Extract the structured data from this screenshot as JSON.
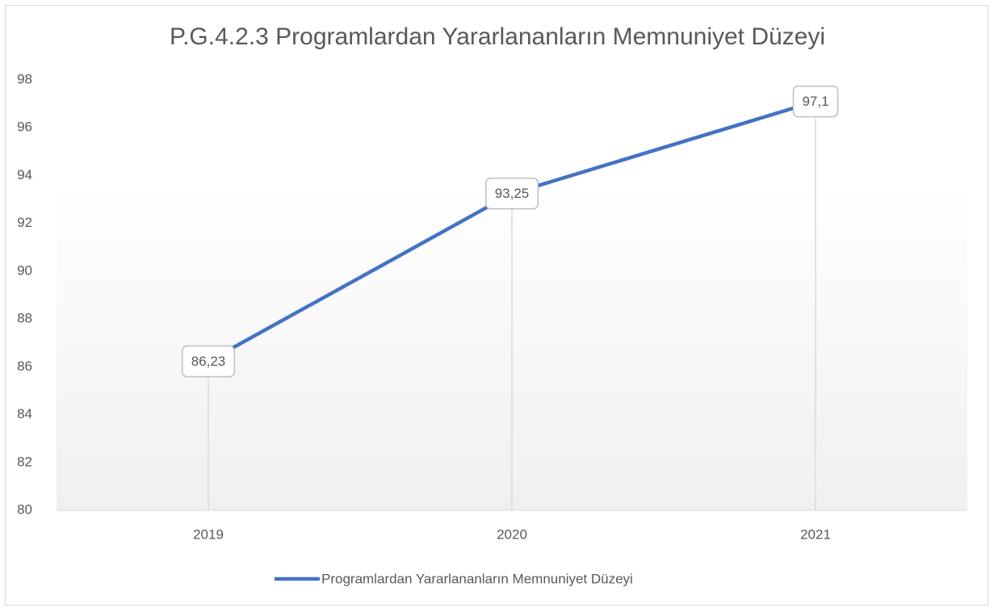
{
  "chart_data": {
    "type": "line",
    "title": "P.G.4.2.3 Programlardan Yararlananların Memnuniyet Düzeyi",
    "categories": [
      "2019",
      "2020",
      "2021"
    ],
    "series": [
      {
        "name": "Programlardan Yararlananların Memnuniyet Düzeyi",
        "color": "#4472c4",
        "values": [
          86.23,
          93.25,
          97.1
        ],
        "value_labels": [
          "86,23",
          "93,25",
          "97,1"
        ]
      }
    ],
    "ylim": [
      80,
      98
    ],
    "yticks": [
      80,
      82,
      84,
      86,
      88,
      90,
      92,
      94,
      96,
      98
    ],
    "drop_lines": true,
    "legend": "bottom"
  }
}
